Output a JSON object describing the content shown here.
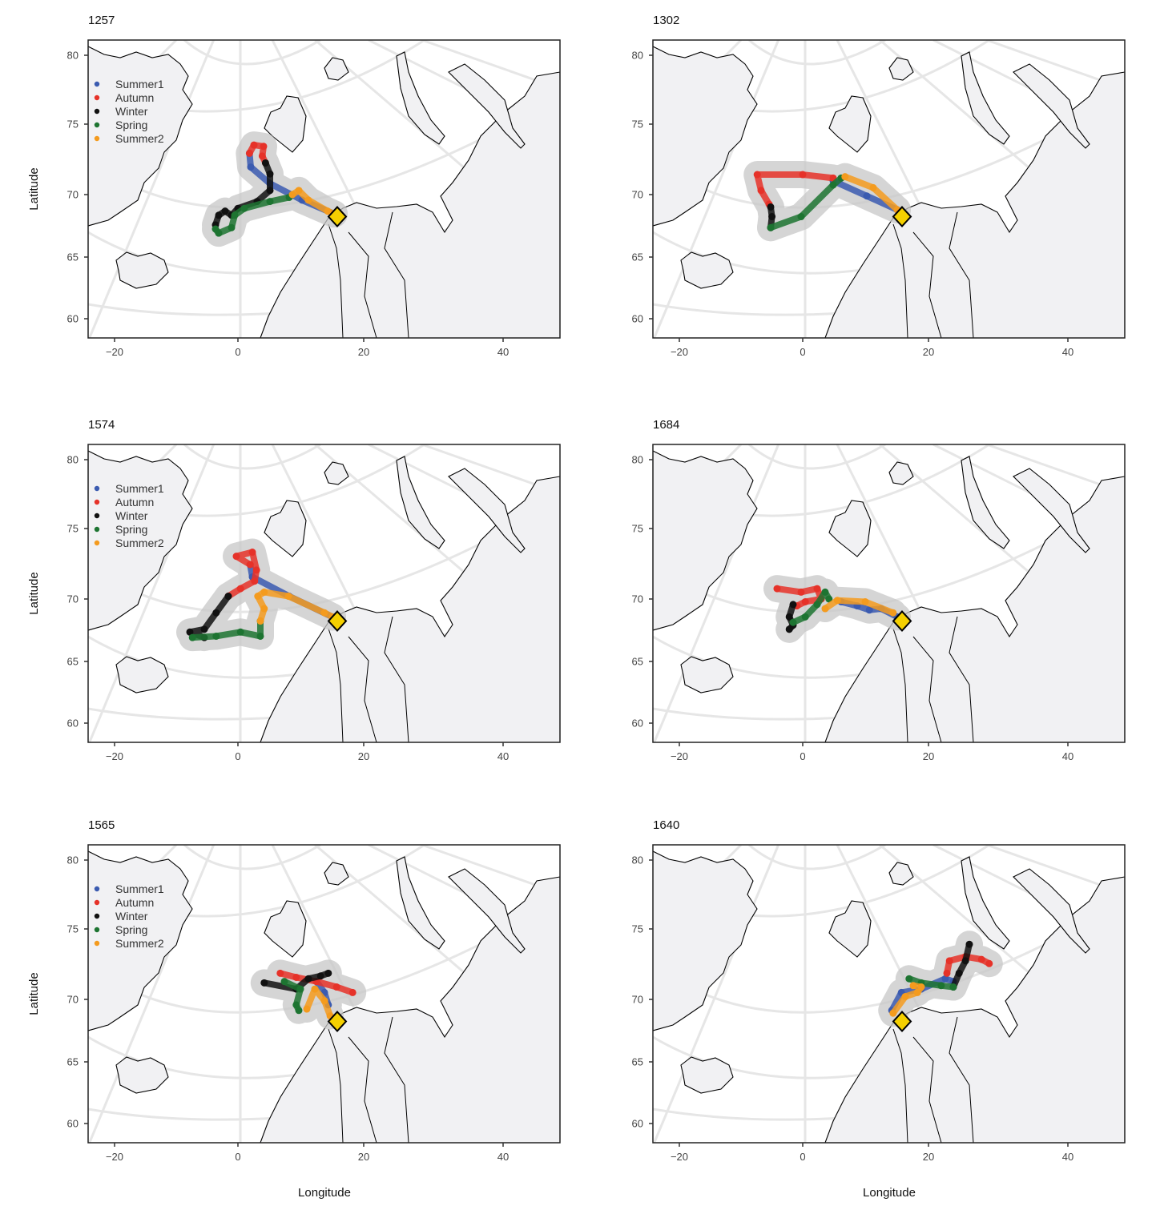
{
  "chart_data": {
    "type": "scatter",
    "subtype": "map-tracks",
    "xlabel": "Longitude",
    "ylabel": "Latitude",
    "x_ticks": [
      -20,
      0,
      20,
      40
    ],
    "y_ticks": [
      60,
      65,
      70,
      75,
      80
    ],
    "xlim": [
      -24,
      50
    ],
    "ylim": [
      58.5,
      81
    ],
    "legend": {
      "placement": "top-left",
      "entries": [
        {
          "name": "Summer1",
          "color": "#3b5bb0"
        },
        {
          "name": "Autumn",
          "color": "#e63229"
        },
        {
          "name": "Winter",
          "color": "#111111"
        },
        {
          "name": "Spring",
          "color": "#1d7431"
        },
        {
          "name": "Summer2",
          "color": "#f49b1e"
        }
      ]
    },
    "colony_marker": {
      "lon": 15.5,
      "lat": 68.4,
      "color": "#f5d000"
    },
    "panels": [
      {
        "title": "1257",
        "show_legend": true,
        "tracks": {
          "Summer1": [
            [
              15,
              68.6
            ],
            [
              10,
              69.6
            ],
            [
              5,
              70.8
            ],
            [
              2,
              72
            ],
            [
              1.8,
              73
            ]
          ],
          "Autumn": [
            [
              1.8,
              73
            ],
            [
              2.5,
              73.6
            ],
            [
              4,
              73.5
            ],
            [
              3.8,
              72.8
            ],
            [
              4.3,
              72.3
            ]
          ],
          "Winter": [
            [
              4.3,
              72.3
            ],
            [
              5,
              71.5
            ],
            [
              5,
              70.3
            ],
            [
              3,
              69.5
            ],
            [
              0,
              69
            ],
            [
              -1,
              68.5
            ],
            [
              -2,
              68.8
            ],
            [
              -3,
              68.5
            ],
            [
              -3.5,
              67.8
            ]
          ],
          "Spring": [
            [
              -3.5,
              67.5
            ],
            [
              -3,
              67.2
            ],
            [
              -1,
              67.6
            ],
            [
              -0.5,
              68.5
            ],
            [
              1,
              69
            ],
            [
              5,
              69.5
            ],
            [
              8,
              69.8
            ],
            [
              8.5,
              70
            ]
          ],
          "Summer2": [
            [
              8.5,
              70
            ],
            [
              9.5,
              70.3
            ],
            [
              11,
              69.6
            ],
            [
              14,
              68.8
            ],
            [
              15,
              68.6
            ]
          ]
        }
      },
      {
        "title": "1302",
        "show_legend": false,
        "tracks": {
          "Summer1": [
            [
              14.75,
              68.9
            ],
            [
              10,
              69.9
            ],
            [
              4.75,
              71
            ]
          ],
          "Autumn": [
            [
              4.75,
              71.2
            ],
            [
              0,
              71.45
            ],
            [
              -7.1,
              71.45
            ],
            [
              -6.5,
              70.3
            ],
            [
              -5.25,
              69.3
            ]
          ],
          "Winter": [
            [
              -5,
              69.1
            ],
            [
              -4.8,
              68.4
            ],
            [
              -5,
              67.6
            ]
          ],
          "Spring": [
            [
              -5,
              67.6
            ],
            [
              -0.25,
              68.4
            ],
            [
              4.75,
              70.7
            ],
            [
              6,
              71.2
            ]
          ],
          "Summer2": [
            [
              6.6,
              71.3
            ],
            [
              11,
              70.5
            ],
            [
              14.75,
              68.9
            ]
          ]
        }
      },
      {
        "title": "1574",
        "show_legend": true,
        "tracks": {
          "Summer1": [
            [
              14.75,
              68.7
            ],
            [
              8,
              70.2
            ],
            [
              2.25,
              71.6
            ],
            [
              1.9,
              72.5
            ]
          ],
          "Autumn": [
            [
              1.9,
              72.5
            ],
            [
              -0.25,
              73.1
            ],
            [
              2.25,
              73.4
            ],
            [
              2.9,
              72.1
            ],
            [
              2.6,
              71.3
            ],
            [
              0.4,
              70.75
            ],
            [
              -1.5,
              70.2
            ]
          ],
          "Winter": [
            [
              -1.5,
              70.2
            ],
            [
              -3.4,
              69
            ],
            [
              -5.25,
              67.8
            ],
            [
              -7.5,
              67.6
            ],
            [
              -5.25,
              67.2
            ]
          ],
          "Spring": [
            [
              -7.1,
              67.2
            ],
            [
              -3.4,
              67.3
            ],
            [
              0.4,
              67.6
            ],
            [
              3.5,
              67.3
            ],
            [
              3.5,
              68.4
            ]
          ],
          "Summer2": [
            [
              3.5,
              68.4
            ],
            [
              4.1,
              69.3
            ],
            [
              3.1,
              70.2
            ],
            [
              4.1,
              70.5
            ],
            [
              7.9,
              70.2
            ],
            [
              13.5,
              69
            ],
            [
              14.75,
              68.7
            ]
          ]
        }
      },
      {
        "title": "1684",
        "show_legend": false,
        "tracks": {
          "Summer1": [
            [
              14.75,
              68.7
            ],
            [
              12.25,
              69.3
            ],
            [
              10.4,
              69.2
            ],
            [
              8.5,
              69.5
            ],
            [
              6,
              69.8
            ]
          ],
          "Autumn": [
            [
              -4,
              70.75
            ],
            [
              -0.25,
              70.5
            ],
            [
              2.25,
              70.75
            ],
            [
              2.9,
              70
            ],
            [
              0.4,
              69.8
            ],
            [
              -0.9,
              69.5
            ]
          ],
          "Winter": [
            [
              -1.5,
              69.6
            ],
            [
              -2.1,
              68.7
            ],
            [
              -1.5,
              68.1
            ],
            [
              -2.1,
              67.8
            ]
          ],
          "Spring": [
            [
              -1.5,
              68.3
            ],
            [
              0.4,
              68.7
            ],
            [
              2.25,
              69.6
            ],
            [
              3.5,
              70.5
            ],
            [
              4.1,
              70
            ]
          ],
          "Summer2": [
            [
              3.5,
              69.3
            ],
            [
              5.4,
              69.9
            ],
            [
              9.75,
              69.8
            ],
            [
              14.1,
              69
            ]
          ]
        }
      },
      {
        "title": "1565",
        "show_legend": true,
        "tracks": {
          "Winter": [
            [
              4.1,
              71.2
            ],
            [
              9.1,
              70.75
            ],
            [
              11,
              71.5
            ],
            [
              12.9,
              71.7
            ],
            [
              14.1,
              71.9
            ]
          ],
          "Autumn": [
            [
              6.6,
              71.9
            ],
            [
              9.1,
              71.6
            ],
            [
              12.25,
              71.3
            ],
            [
              15.4,
              70.9
            ],
            [
              17.9,
              70.5
            ]
          ],
          "Summer1": [
            [
              12.25,
              71.3
            ],
            [
              13.5,
              70.5
            ],
            [
              14.1,
              69.6
            ]
          ],
          "Spring": [
            [
              7.25,
              71.3
            ],
            [
              9.75,
              70.75
            ],
            [
              9.1,
              69.6
            ],
            [
              9.5,
              69.2
            ]
          ],
          "Summer2": [
            [
              10.75,
              69.3
            ],
            [
              12,
              70.75
            ],
            [
              13.5,
              69.9
            ],
            [
              14.4,
              68.8
            ]
          ]
        }
      },
      {
        "title": "1640",
        "show_legend": false,
        "tracks": {
          "Summer1": [
            [
              13.9,
              69.2
            ],
            [
              15.4,
              70.5
            ],
            [
              18.5,
              70.75
            ],
            [
              22.25,
              71.5
            ],
            [
              23.5,
              71.3
            ]
          ],
          "Summer2": [
            [
              14.1,
              69
            ],
            [
              16,
              70.2
            ],
            [
              17.9,
              70.5
            ],
            [
              18.5,
              70.9
            ],
            [
              17.25,
              71
            ]
          ],
          "Spring": [
            [
              16.6,
              71.5
            ],
            [
              18.5,
              71.2
            ],
            [
              21.6,
              71
            ],
            [
              23.5,
              70.9
            ]
          ],
          "Winter": [
            [
              23.5,
              70.9
            ],
            [
              24.4,
              71.9
            ],
            [
              25.4,
              72.8
            ],
            [
              26,
              74
            ]
          ],
          "Autumn": [
            [
              22.5,
              71.9
            ],
            [
              22.9,
              72.8
            ],
            [
              25.4,
              73.1
            ],
            [
              27.9,
              72.9
            ],
            [
              29.1,
              72.6
            ]
          ]
        }
      }
    ]
  }
}
